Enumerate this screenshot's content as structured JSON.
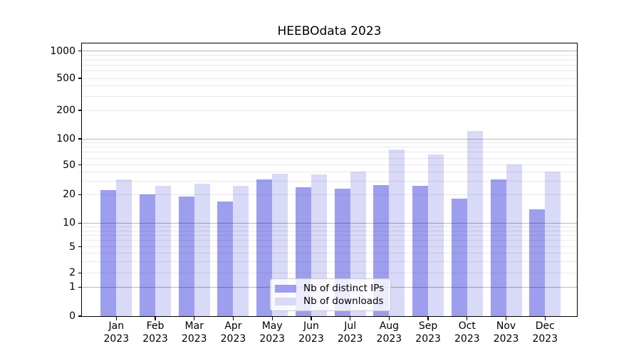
{
  "figure": {
    "background": "#ffffff"
  },
  "chart_data": {
    "type": "bar",
    "title": "HEEBOdata 2023",
    "categories": [
      "Jan",
      "Feb",
      "Mar",
      "Apr",
      "May",
      "Jun",
      "Jul",
      "Aug",
      "Sep",
      "Oct",
      "Nov",
      "Dec"
    ],
    "x_tick_second_line": "2023",
    "series": [
      {
        "name": "Nb of distinct IPs",
        "color": "#9e9eef",
        "values": [
          23,
          20,
          19,
          17,
          32,
          25,
          24,
          27,
          26,
          18,
          32,
          14
        ]
      },
      {
        "name": "Nb of downloads",
        "color": "#d9d9f8",
        "values": [
          32,
          26,
          28,
          26,
          38,
          37,
          41,
          75,
          66,
          120,
          51,
          41
        ]
      }
    ],
    "yscale": "symlog",
    "yticks": [
      0,
      1,
      2,
      5,
      10,
      20,
      50,
      100,
      200,
      500,
      1000
    ],
    "ylim": [
      0,
      1200
    ],
    "grid": true,
    "gridline_major_values": [
      1,
      10,
      100,
      1000
    ],
    "legend_position": "lower center"
  }
}
